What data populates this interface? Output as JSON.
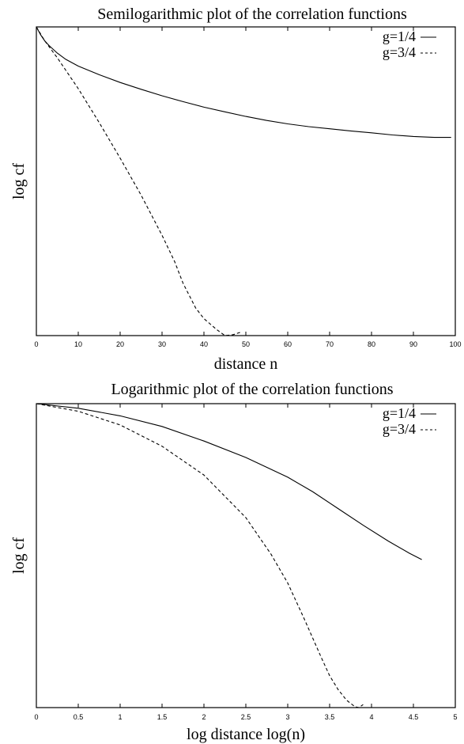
{
  "chart_data": [
    {
      "type": "line",
      "title": "Semilogarithmic plot of the correlation functions",
      "xlabel": "distance n",
      "ylabel": "log cf",
      "xlim": [
        0,
        100
      ],
      "ylim": [
        0,
        1
      ],
      "xticks": [
        0,
        10,
        20,
        30,
        40,
        50,
        60,
        70,
        80,
        90,
        100
      ],
      "x_tick_labels": [
        "0",
        "10",
        "20",
        "30",
        "40",
        "50",
        "60",
        "70",
        "80",
        "90",
        "100"
      ],
      "grid": false,
      "legend_position": "top-right",
      "series": [
        {
          "name": "g=1/4",
          "legend_text": "g=1/4",
          "legend_mark": "—",
          "dash": "solid",
          "x": [
            0,
            1,
            2,
            3,
            5,
            7,
            10,
            15,
            20,
            25,
            30,
            35,
            40,
            45,
            50,
            55,
            60,
            65,
            70,
            75,
            80,
            85,
            90,
            95,
            99
          ],
          "y": [
            1.0,
            0.975,
            0.955,
            0.94,
            0.915,
            0.895,
            0.873,
            0.845,
            0.82,
            0.798,
            0.777,
            0.758,
            0.74,
            0.725,
            0.71,
            0.697,
            0.686,
            0.677,
            0.67,
            0.663,
            0.657,
            0.65,
            0.645,
            0.642,
            0.642
          ]
        },
        {
          "name": "g=3/4",
          "legend_text": "g=3/4",
          "legend_mark": "- - -",
          "dash": "dashed",
          "x": [
            0,
            2,
            5,
            8,
            10,
            15,
            20,
            25,
            30,
            33,
            35,
            38,
            40,
            43,
            45,
            47,
            49
          ],
          "y": [
            1.0,
            0.955,
            0.9,
            0.84,
            0.8,
            0.69,
            0.575,
            0.455,
            0.325,
            0.24,
            0.17,
            0.09,
            0.055,
            0.02,
            0.0,
            0.003,
            0.012
          ]
        }
      ]
    },
    {
      "type": "line",
      "title": "Logarithmic plot of the correlation functions",
      "xlabel": "log distance log(n)",
      "ylabel": "log cf",
      "xlim": [
        0,
        5
      ],
      "ylim": [
        0,
        1
      ],
      "xticks": [
        0,
        0.5,
        1,
        1.5,
        2,
        2.5,
        3,
        3.5,
        4,
        4.5,
        5
      ],
      "x_tick_labels": [
        "0",
        "0.5",
        "1",
        "1.5",
        "2",
        "2.5",
        "3",
        "3.5",
        "4",
        "4.5",
        "5"
      ],
      "grid": false,
      "legend_position": "top-right",
      "series": [
        {
          "name": "g=1/4",
          "legend_text": "g=1/4",
          "legend_mark": "—",
          "dash": "solid",
          "x": [
            0,
            0.5,
            1.0,
            1.5,
            2.0,
            2.5,
            3.0,
            3.3,
            3.6,
            3.9,
            4.2,
            4.45,
            4.6
          ],
          "y": [
            1.0,
            0.985,
            0.96,
            0.925,
            0.877,
            0.823,
            0.758,
            0.71,
            0.655,
            0.6,
            0.548,
            0.508,
            0.487
          ]
        },
        {
          "name": "g=3/4",
          "legend_text": "g=3/4",
          "legend_mark": "- - -",
          "dash": "dashed",
          "x": [
            0,
            0.5,
            1.0,
            1.5,
            2.0,
            2.5,
            2.8,
            3.0,
            3.2,
            3.4,
            3.5,
            3.6,
            3.7,
            3.8,
            3.85,
            3.9
          ],
          "y": [
            1.0,
            0.975,
            0.93,
            0.86,
            0.765,
            0.625,
            0.505,
            0.41,
            0.29,
            0.165,
            0.105,
            0.06,
            0.025,
            0.003,
            0.0,
            0.01
          ]
        }
      ]
    }
  ]
}
